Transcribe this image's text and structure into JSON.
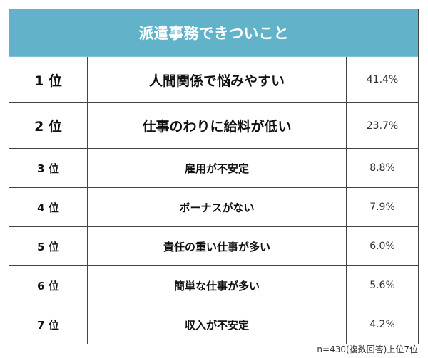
{
  "chart_data": {
    "type": "table",
    "title": "派遣事務できついこと",
    "header_color": "#62b3c9",
    "rows": [
      {
        "rank": "1 位",
        "item": "人間関係で悩みやすい",
        "value": "41.4%"
      },
      {
        "rank": "2 位",
        "item": "仕事のわりに給料が低い",
        "value": "23.7%"
      },
      {
        "rank": "3 位",
        "item": "雇用が不安定",
        "value": "8.8%"
      },
      {
        "rank": "4 位",
        "item": "ボーナスがない",
        "value": "7.9%"
      },
      {
        "rank": "5 位",
        "item": "責任の重い仕事が多い",
        "value": "6.0%"
      },
      {
        "rank": "6 位",
        "item": "簡単な仕事が多い",
        "value": "5.6%"
      },
      {
        "rank": "7 位",
        "item": "収入が不安定",
        "value": "4.2%"
      }
    ],
    "note": "n=430(複数回答)上位7位"
  }
}
